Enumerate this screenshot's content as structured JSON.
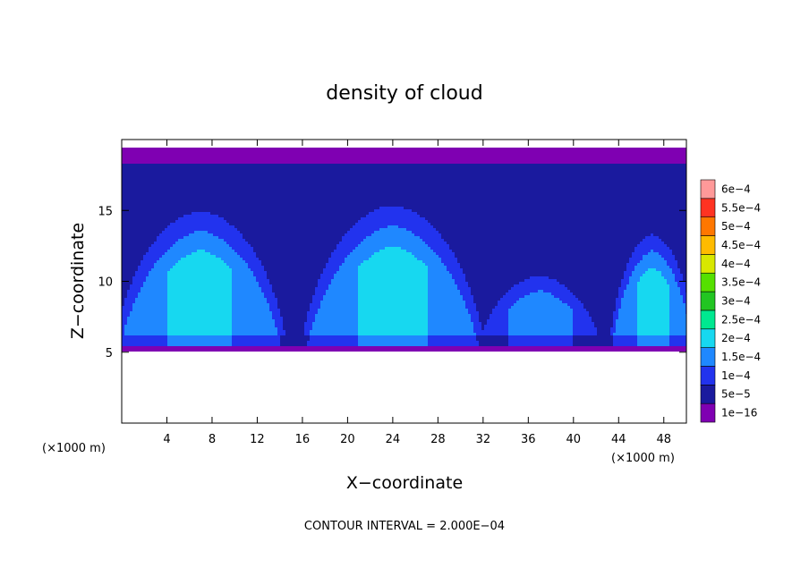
{
  "chart_data": {
    "type": "heatmap",
    "title": "density of cloud",
    "xlabel": "X−coordinate",
    "ylabel": "Z−coordinate",
    "x_unit": "(×1000 m)",
    "y_unit": "(×1000 m)",
    "xlim": [
      0,
      50
    ],
    "ylim": [
      0,
      20
    ],
    "x_ticks": [
      4,
      8,
      12,
      16,
      20,
      24,
      28,
      32,
      36,
      40,
      44,
      48
    ],
    "y_ticks": [
      5,
      10,
      15
    ],
    "grid": false,
    "contour_interval_text": "CONTOUR INTERVAL = 2.000E−04",
    "colorbar": {
      "placement": "right",
      "levels": [
        {
          "label": "1e−16",
          "color": "#7f00b2"
        },
        {
          "label": "5e−5",
          "color": "#1a1a9e"
        },
        {
          "label": "1e−4",
          "color": "#2233ee"
        },
        {
          "label": "1.5e−4",
          "color": "#1f88ff"
        },
        {
          "label": "2e−4",
          "color": "#17d8f0"
        },
        {
          "label": "2.5e−4",
          "color": "#00e890"
        },
        {
          "label": "3e−4",
          "color": "#22c522"
        },
        {
          "label": "3.5e−4",
          "color": "#55e000"
        },
        {
          "label": "4e−4",
          "color": "#d8e800"
        },
        {
          "label": "4.5e−4",
          "color": "#ffbb00"
        },
        {
          "label": "5e−4",
          "color": "#ff7700"
        },
        {
          "label": "5.5e−4",
          "color": "#ff3322"
        },
        {
          "label": "6e−4",
          "color": "#ff9999"
        }
      ]
    },
    "field": {
      "cloud_base_z": 5,
      "cloud_top_z": 19.5,
      "background_color": "#ffffff",
      "updrafts": [
        {
          "x_center": 7,
          "x_half_width": 8,
          "z_top": 17,
          "peak_level": 4
        },
        {
          "x_center": 24,
          "x_half_width": 8.5,
          "z_top": 17.5,
          "peak_level": 4
        },
        {
          "x_center": 37,
          "x_half_width": 6,
          "z_top": 12,
          "peak_level": 3
        },
        {
          "x_center": 47,
          "x_half_width": 4,
          "z_top": 15,
          "peak_level": 4
        }
      ]
    }
  }
}
